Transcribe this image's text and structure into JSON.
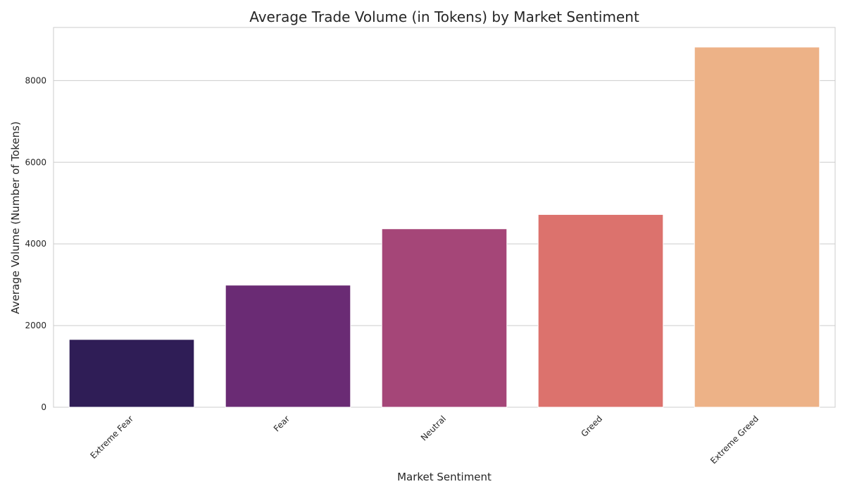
{
  "chart_data": {
    "type": "bar",
    "title": "Average Trade Volume (in Tokens) by Market Sentiment",
    "xlabel": "Market Sentiment",
    "ylabel": "Average Volume (Number of Tokens)",
    "categories": [
      "Extreme Fear",
      "Fear",
      "Neutral",
      "Greed",
      "Extreme Greed"
    ],
    "values": [
      1660,
      2990,
      4370,
      4720,
      8820
    ],
    "colors": [
      "#2f1d56",
      "#6a2b74",
      "#a54678",
      "#dc726d",
      "#edb287"
    ],
    "yticks": [
      0,
      2000,
      4000,
      6000,
      8000
    ],
    "ylim": [
      0,
      9300
    ],
    "grid": true,
    "legend": "none"
  }
}
